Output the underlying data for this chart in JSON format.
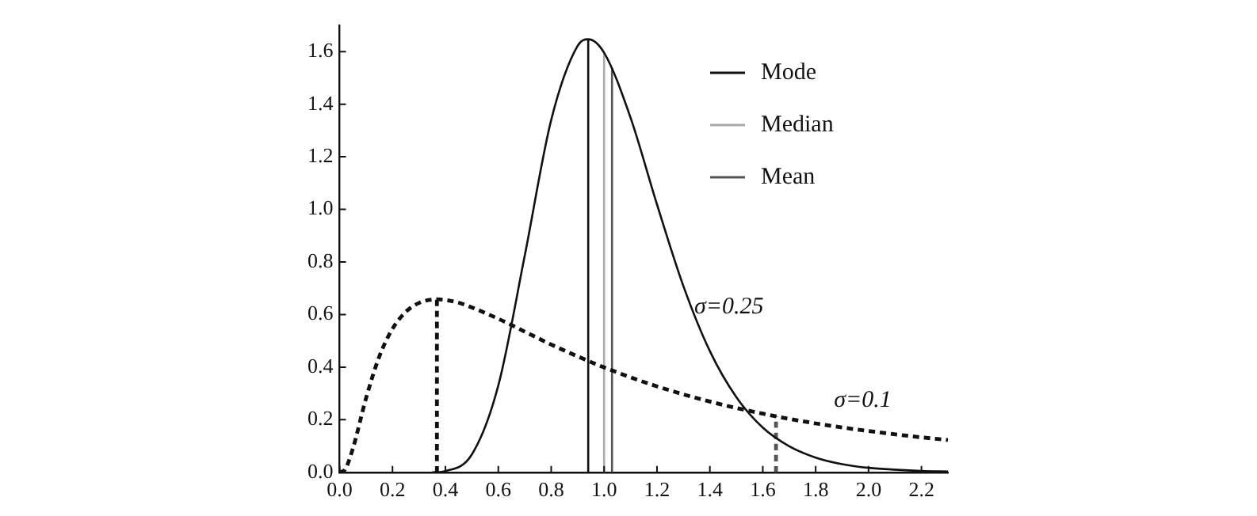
{
  "chart_data": {
    "type": "line",
    "xlim": [
      0,
      2.3
    ],
    "ylim": [
      0,
      1.7
    ],
    "xticks": [
      {
        "value": 0,
        "label": "0.0"
      },
      0.2,
      0.4,
      0.6,
      0.8,
      {
        "value": 1,
        "label": "1.0"
      },
      1.2,
      1.4,
      1.6,
      1.8,
      {
        "value": 2,
        "label": "2.0"
      },
      2.2
    ],
    "yticks": [
      {
        "value": 0,
        "label": "0.0"
      },
      0.2,
      0.4,
      0.6,
      0.8,
      {
        "value": 1,
        "label": "1.0"
      },
      1.2,
      1.4,
      1.6
    ],
    "grid": false,
    "legend": "top right",
    "marker": "none",
    "annotations": [
      "σ=0.25",
      "σ=0.1"
    ],
    "series": [
      {
        "color": "#111111",
        "line_style": "solid",
        "x": [
          0.35,
          0.4,
          0.5,
          0.6,
          0.7,
          0.8,
          0.9,
          0.94,
          1.0,
          1.1,
          1.2,
          1.3,
          1.4,
          1.5,
          1.6,
          1.7,
          1.8,
          1.9,
          2.0,
          2.2,
          2.3
        ],
        "values": [
          0,
          0.005,
          0.068,
          0.33,
          0.824,
          1.34,
          1.622,
          1.647,
          1.596,
          1.349,
          1.019,
          0.708,
          0.461,
          0.286,
          0.17,
          0.099,
          0.056,
          0.031,
          0.017,
          0.005,
          0.003
        ]
      },
      {
        "color": "#111111",
        "line_style": "dashed",
        "x": [
          0,
          0.02,
          0.05,
          0.1,
          0.15,
          0.2,
          0.25,
          0.3,
          0.368,
          0.45,
          0.5,
          0.6,
          0.7,
          0.8,
          0.9,
          1.0,
          1.2,
          1.4,
          1.6,
          1.8,
          2.0,
          2.2,
          2.3
        ],
        "values": [
          0,
          0.01,
          0.09,
          0.282,
          0.44,
          0.546,
          0.61,
          0.644,
          0.658,
          0.645,
          0.627,
          0.584,
          0.535,
          0.486,
          0.441,
          0.399,
          0.327,
          0.269,
          0.223,
          0.186,
          0.157,
          0.133,
          0.123
        ]
      },
      {
        "name": "Mode",
        "color": "#111111",
        "line_style": "solid",
        "x": [
          0.94,
          0.94
        ],
        "values": [
          0,
          1.647
        ]
      },
      {
        "name": "Median",
        "color": "#aaaaaa",
        "line_style": "solid",
        "x": [
          1.0,
          1.0
        ],
        "values": [
          0,
          1.596
        ]
      },
      {
        "name": "Mean",
        "color": "#555555",
        "line_style": "solid",
        "x": [
          1.03,
          1.03
        ],
        "values": [
          0,
          1.538
        ]
      },
      {
        "color": "#111111",
        "line_style": "dashed",
        "x": [
          0.368,
          0.368
        ],
        "values": [
          0,
          0.658
        ]
      },
      {
        "color": "#555555",
        "line_style": "dashed",
        "x": [
          1.65,
          1.65
        ],
        "values": [
          0,
          0.213
        ]
      }
    ]
  }
}
